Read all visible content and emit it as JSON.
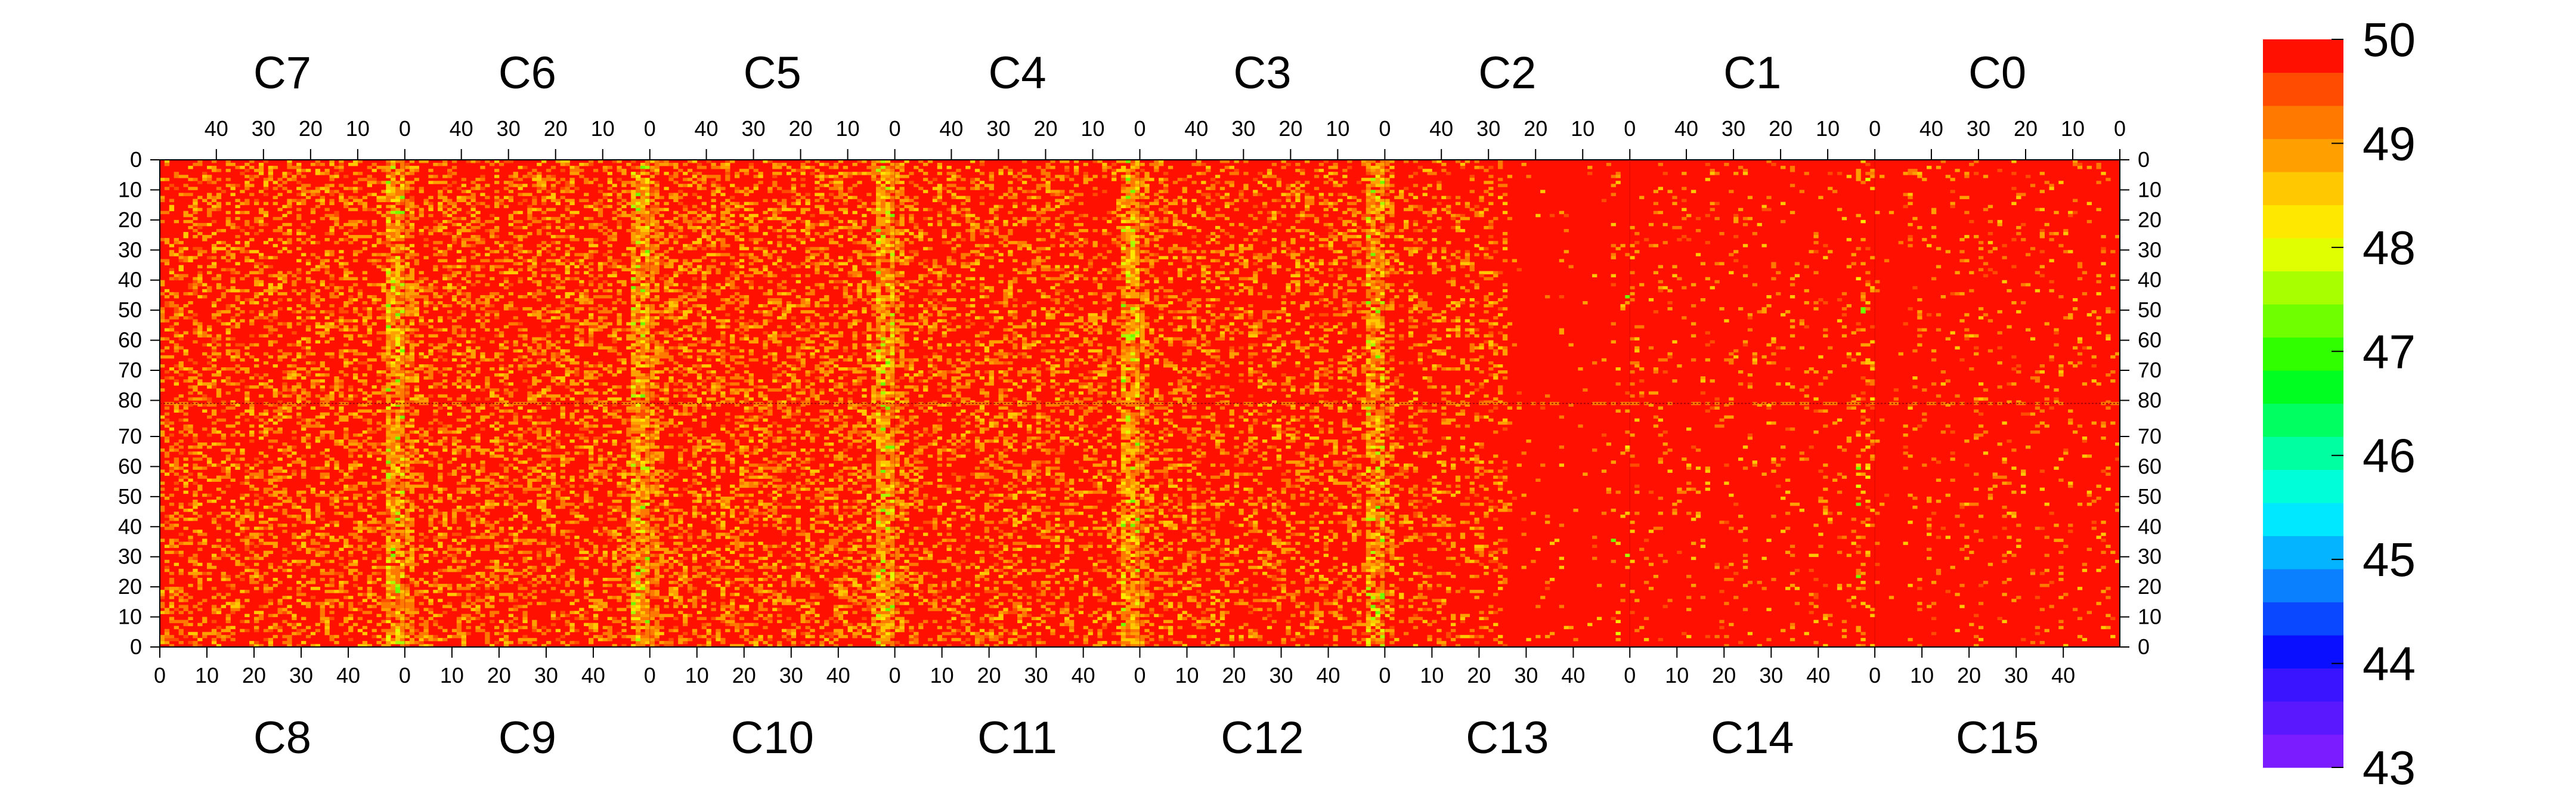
{
  "chart_data": {
    "type": "heatmap",
    "top_chip_labels": [
      "C7",
      "C6",
      "C5",
      "C4",
      "C3",
      "C2",
      "C1",
      "C0"
    ],
    "bottom_chip_labels": [
      "C8",
      "C9",
      "C10",
      "C11",
      "C12",
      "C13",
      "C14",
      "C15"
    ],
    "top_x_ticks": [
      "40",
      "30",
      "20",
      "10",
      "0"
    ],
    "bottom_x_ticks": [
      "0",
      "10",
      "20",
      "30",
      "40"
    ],
    "y_ticks_top_half": [
      "0",
      "10",
      "20",
      "30",
      "40",
      "50",
      "60",
      "70",
      "80"
    ],
    "y_ticks_bottom_half": [
      "70",
      "60",
      "50",
      "40",
      "30",
      "20",
      "10",
      "0"
    ],
    "colorbar": {
      "min": 43,
      "max": 50,
      "ticks": [
        "43",
        "44",
        "45",
        "46",
        "47",
        "48",
        "49",
        "50"
      ],
      "colors": [
        "#7a1cff",
        "#5a18ff",
        "#3a14ff",
        "#0a10ff",
        "#0a48ff",
        "#0a80ff",
        "#05b4ff",
        "#00e8ff",
        "#00ffd8",
        "#00ffa0",
        "#00ff60",
        "#00ff20",
        "#30ff00",
        "#70ff00",
        "#a8ff00",
        "#e0ff00",
        "#ffe800",
        "#ffc800",
        "#ffa000",
        "#ff7800",
        "#ff4c00",
        "#ff1000"
      ]
    },
    "cells": {
      "base_value": 50,
      "description_values": "most pixels at 50 (red); scattered pixels 47-49.5, concentrated near chip edges (column 0) of C7-C2 / C8-C13; right region (C13-C15, C2-C0 right side) nearly uniform 50"
    },
    "grid": false,
    "legend": "colorbar-right"
  }
}
